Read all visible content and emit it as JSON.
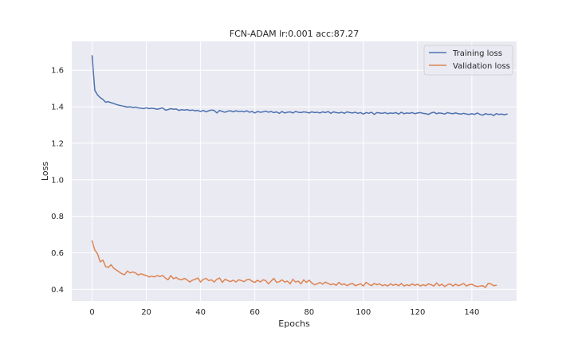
{
  "chart_data": {
    "type": "line",
    "title": "FCN-ADAM lr:0.001 acc:87.27",
    "xlabel": "Epochs",
    "ylabel": "Loss",
    "xlim": [
      -7.5,
      156.5
    ],
    "ylim": [
      0.336,
      1.758
    ],
    "xticks": [
      0,
      20,
      40,
      60,
      80,
      100,
      120,
      140
    ],
    "yticks": [
      0.4,
      0.6,
      0.8,
      1.0,
      1.2,
      1.4,
      1.6
    ],
    "ytick_labels": [
      "0.4",
      "0.6",
      "0.8",
      "1.0",
      "1.2",
      "1.4",
      "1.6"
    ],
    "grid": true,
    "legend_position": "top-right",
    "background": "#eaeaf2",
    "series": [
      {
        "name": "Training loss",
        "color": "#4c72b0",
        "values": [
          1.68,
          1.49,
          1.465,
          1.45,
          1.44,
          1.425,
          1.428,
          1.422,
          1.418,
          1.412,
          1.408,
          1.405,
          1.402,
          1.398,
          1.4,
          1.396,
          1.398,
          1.394,
          1.392,
          1.39,
          1.394,
          1.39,
          1.392,
          1.39,
          1.386,
          1.39,
          1.394,
          1.382,
          1.384,
          1.39,
          1.386,
          1.388,
          1.38,
          1.384,
          1.382,
          1.384,
          1.38,
          1.382,
          1.378,
          1.38,
          1.374,
          1.38,
          1.372,
          1.378,
          1.382,
          1.38,
          1.366,
          1.38,
          1.374,
          1.37,
          1.376,
          1.378,
          1.372,
          1.378,
          1.374,
          1.376,
          1.372,
          1.378,
          1.37,
          1.374,
          1.366,
          1.374,
          1.37,
          1.372,
          1.376,
          1.37,
          1.374,
          1.368,
          1.372,
          1.364,
          1.374,
          1.366,
          1.37,
          1.372,
          1.366,
          1.374,
          1.37,
          1.368,
          1.372,
          1.37,
          1.366,
          1.372,
          1.368,
          1.37,
          1.366,
          1.372,
          1.368,
          1.374,
          1.364,
          1.372,
          1.368,
          1.366,
          1.37,
          1.364,
          1.372,
          1.368,
          1.366,
          1.37,
          1.364,
          1.368,
          1.36,
          1.368,
          1.364,
          1.37,
          1.358,
          1.368,
          1.366,
          1.364,
          1.368,
          1.362,
          1.366,
          1.364,
          1.368,
          1.36,
          1.37,
          1.362,
          1.366,
          1.364,
          1.368,
          1.362,
          1.366,
          1.368,
          1.364,
          1.362,
          1.358,
          1.366,
          1.37,
          1.362,
          1.366,
          1.364,
          1.36,
          1.368,
          1.364,
          1.362,
          1.366,
          1.362,
          1.36,
          1.364,
          1.36,
          1.358,
          1.362,
          1.358,
          1.366,
          1.358,
          1.354,
          1.362,
          1.358,
          1.36,
          1.352,
          1.362,
          1.358,
          1.36,
          1.356,
          1.36
        ]
      },
      {
        "name": "Validation loss",
        "color": "#dd8452",
        "values": [
          0.665,
          0.615,
          0.595,
          0.55,
          0.56,
          0.525,
          0.52,
          0.535,
          0.515,
          0.505,
          0.495,
          0.485,
          0.48,
          0.5,
          0.49,
          0.495,
          0.49,
          0.478,
          0.485,
          0.48,
          0.475,
          0.468,
          0.472,
          0.468,
          0.475,
          0.47,
          0.476,
          0.462,
          0.452,
          0.475,
          0.458,
          0.465,
          0.455,
          0.452,
          0.46,
          0.452,
          0.44,
          0.45,
          0.455,
          0.462,
          0.44,
          0.455,
          0.46,
          0.448,
          0.452,
          0.44,
          0.455,
          0.462,
          0.438,
          0.455,
          0.448,
          0.442,
          0.45,
          0.44,
          0.452,
          0.448,
          0.442,
          0.452,
          0.455,
          0.444,
          0.438,
          0.45,
          0.44,
          0.452,
          0.448,
          0.43,
          0.445,
          0.46,
          0.438,
          0.442,
          0.452,
          0.44,
          0.445,
          0.43,
          0.455,
          0.44,
          0.445,
          0.43,
          0.452,
          0.438,
          0.45,
          0.435,
          0.425,
          0.43,
          0.438,
          0.428,
          0.44,
          0.432,
          0.425,
          0.43,
          0.422,
          0.438,
          0.425,
          0.43,
          0.42,
          0.428,
          0.432,
          0.42,
          0.425,
          0.43,
          0.418,
          0.438,
          0.428,
          0.42,
          0.432,
          0.425,
          0.43,
          0.42,
          0.425,
          0.418,
          0.43,
          0.422,
          0.428,
          0.42,
          0.432,
          0.418,
          0.425,
          0.42,
          0.43,
          0.422,
          0.428,
          0.418,
          0.425,
          0.42,
          0.43,
          0.425,
          0.418,
          0.435,
          0.42,
          0.428,
          0.415,
          0.425,
          0.43,
          0.418,
          0.428,
          0.42,
          0.425,
          0.432,
          0.418,
          0.425,
          0.428,
          0.42,
          0.415,
          0.418,
          0.42,
          0.41,
          0.432,
          0.43,
          0.42,
          0.422
        ]
      }
    ]
  }
}
